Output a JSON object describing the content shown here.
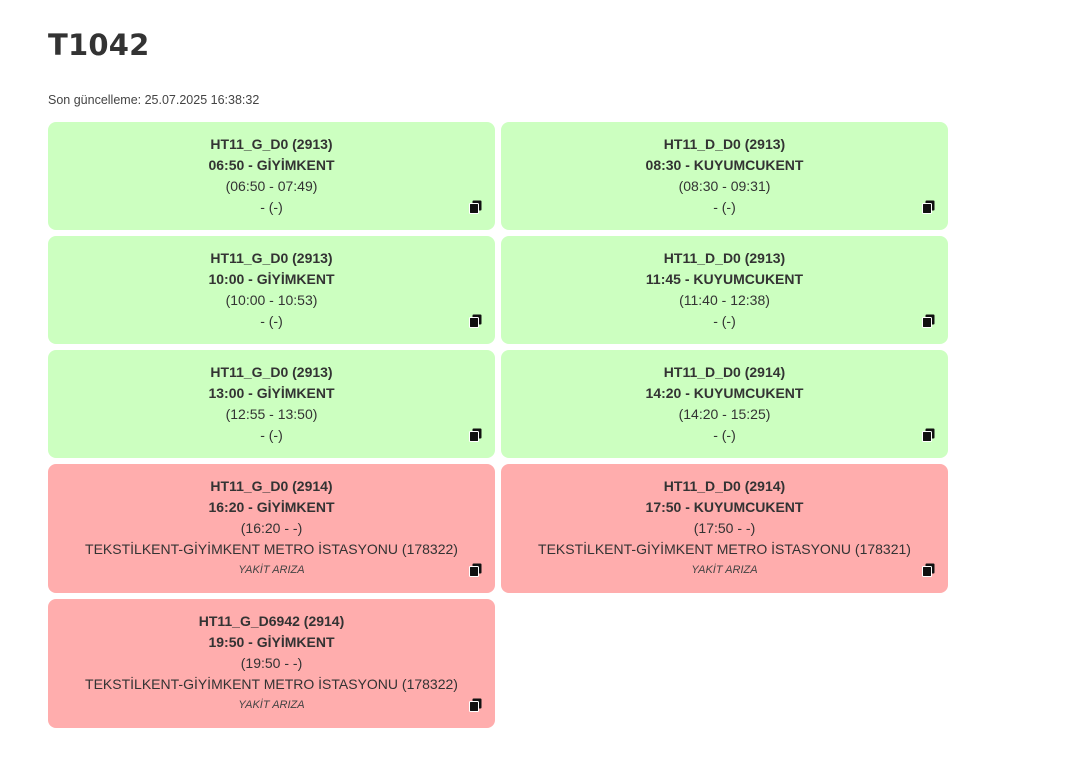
{
  "page": {
    "title": "T1042",
    "updated": "Son güncelleme: 25.07.2025 16:38:32"
  },
  "colors": {
    "ok": "#ccffc0",
    "fail": "#ffadad"
  },
  "cards": [
    {
      "status": "ok",
      "block": "HT11_G_D0 (2913)",
      "departure": "06:50 - GİYİMKENT",
      "times": "(06:50 - 07:49)",
      "stop": "- (-)",
      "note": "",
      "icon": "copy-icon"
    },
    {
      "status": "ok",
      "block": "HT11_D_D0 (2913)",
      "departure": "08:30 - KUYUMCUKENT",
      "times": "(08:30 - 09:31)",
      "stop": "- (-)",
      "note": "",
      "icon": "copy-icon"
    },
    {
      "status": "ok",
      "block": "HT11_G_D0 (2913)",
      "departure": "10:00 - GİYİMKENT",
      "times": "(10:00 - 10:53)",
      "stop": "- (-)",
      "note": "",
      "icon": "copy-icon"
    },
    {
      "status": "ok",
      "block": "HT11_D_D0 (2913)",
      "departure": "11:45 - KUYUMCUKENT",
      "times": "(11:40 - 12:38)",
      "stop": "- (-)",
      "note": "",
      "icon": "copy-icon"
    },
    {
      "status": "ok",
      "block": "HT11_G_D0 (2913)",
      "departure": "13:00 - GİYİMKENT",
      "times": "(12:55 - 13:50)",
      "stop": "- (-)",
      "note": "",
      "icon": "copy-icon"
    },
    {
      "status": "ok",
      "block": "HT11_D_D0 (2914)",
      "departure": "14:20 - KUYUMCUKENT",
      "times": "(14:20 - 15:25)",
      "stop": "- (-)",
      "note": "",
      "icon": "copy-icon"
    },
    {
      "status": "fail",
      "block": "HT11_G_D0 (2914)",
      "departure": "16:20 - GİYİMKENT",
      "times": "(16:20 - -)",
      "stop": "TEKSTİLKENT-GİYİMKENT METRO İSTASYONU (178322)",
      "note": "YAKİT ARIZA",
      "icon": "copy-icon"
    },
    {
      "status": "fail",
      "block": "HT11_D_D0 (2914)",
      "departure": "17:50 - KUYUMCUKENT",
      "times": "(17:50 - -)",
      "stop": "TEKSTİLKENT-GİYİMKENT METRO İSTASYONU (178321)",
      "note": "YAKİT ARIZA",
      "icon": "copy-icon"
    },
    {
      "status": "fail",
      "block": "HT11_G_D6942 (2914)",
      "departure": "19:50 - GİYİMKENT",
      "times": "(19:50 - -)",
      "stop": "TEKSTİLKENT-GİYİMKENT METRO İSTASYONU (178322)",
      "note": "YAKİT ARIZA",
      "icon": "copy-icon"
    }
  ]
}
